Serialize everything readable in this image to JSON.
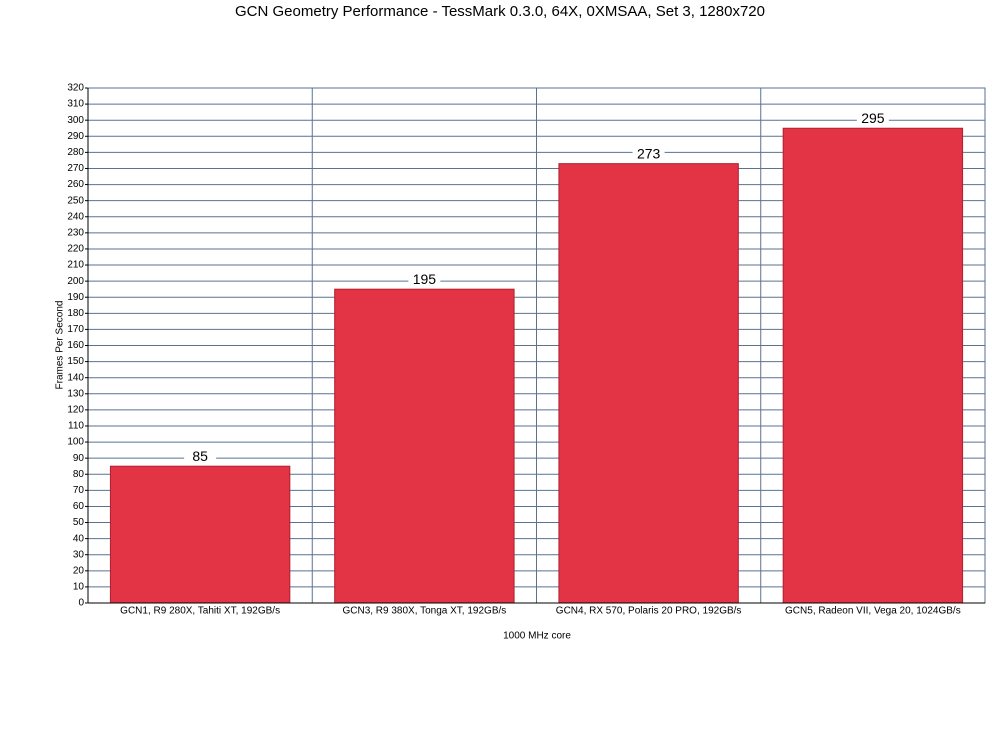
{
  "chart_data": {
    "type": "bar",
    "title": "GCN Geometry Performance - TessMark 0.3.0, 64X, 0XMSAA, Set 3, 1280x720",
    "x_label": "1000 MHz core",
    "y_label": "Frames Per Second",
    "categories": [
      "GCN1, R9 280X, Tahiti XT, 192GB/s",
      "GCN3, R9 380X, Tonga XT, 192GB/s",
      "GCN4, RX 570, Polaris 20 PRO, 192GB/s",
      "GCN5, Radeon VII, Vega 20, 1024GB/s"
    ],
    "values": [
      85,
      195,
      273,
      295
    ],
    "color": "#e23444",
    "ylim": [
      0,
      320
    ],
    "yticks": [
      0,
      10,
      20,
      30,
      40,
      50,
      60,
      70,
      80,
      90,
      100,
      110,
      120,
      130,
      140,
      150,
      160,
      170,
      180,
      190,
      200,
      210,
      220,
      230,
      240,
      250,
      260,
      270,
      280,
      290,
      300,
      310,
      320
    ],
    "grid": true
  }
}
